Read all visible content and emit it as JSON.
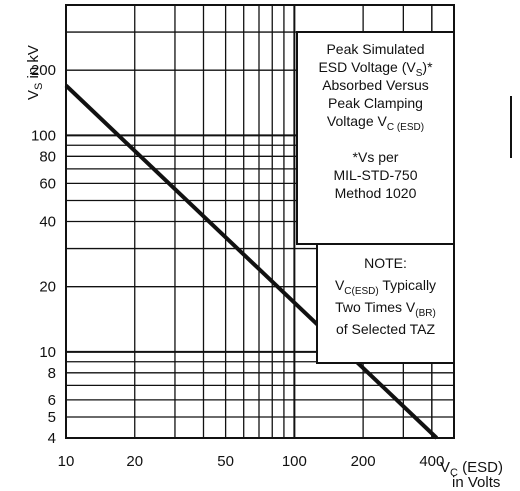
{
  "chart_data": {
    "type": "line",
    "x_scale": "log",
    "y_scale": "log",
    "xlim": [
      10,
      500
    ],
    "ylim": [
      4,
      400
    ],
    "xticks": [
      "10",
      "20",
      "50",
      "100",
      "200",
      "400"
    ],
    "yticks": [
      "200",
      "100",
      "80",
      "60",
      "40",
      "20",
      "10",
      "8",
      "6",
      "5",
      "4"
    ],
    "ylabel": "VS in kV",
    "ylabel_main": "V",
    "ylabel_sub": "S",
    "ylabel_rest": " in kV",
    "xlabel_main": "V",
    "xlabel_sub": "C",
    "xlabel_rest": " (ESD)",
    "xlabel_line2": "in Volts",
    "grid": true,
    "series": [
      {
        "x": [
          10,
          420
        ],
        "y": [
          170,
          4
        ]
      }
    ]
  },
  "annotation_box": {
    "line1": "Peak Simulated",
    "line2_pre": "ESD Voltage (V",
    "line2_sub": "S",
    "line2_post": ")*",
    "line3": "Absorbed Versus",
    "line4": "Peak Clamping",
    "line5_pre": "Voltage V",
    "line5_sub": "C (ESD)",
    "line6": "*Vs per",
    "line7": "MIL-STD-750",
    "line8": "Method 1020"
  },
  "note_box": {
    "title": "NOTE:",
    "line1_pre": "V",
    "line1_sub": "C(ESD)",
    "line1_post": " Typically",
    "line2_pre": "Two Times V",
    "line2_sub": "(BR)",
    "line3": "of Selected TAZ"
  }
}
